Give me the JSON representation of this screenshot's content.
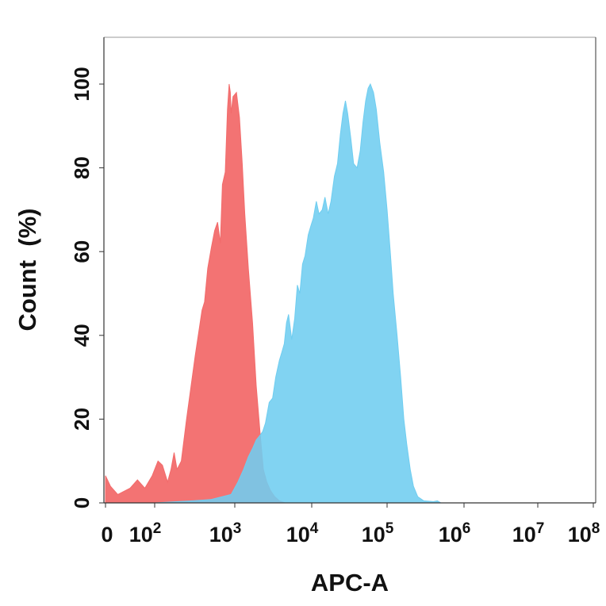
{
  "chart_data": {
    "type": "area",
    "title": "",
    "xlabel": "APC-A",
    "ylabel": "Count  (%)",
    "x_scale": "biexponential (log10 for x > 0)",
    "xlim": [
      0,
      100000000
    ],
    "ylim": [
      0,
      110
    ],
    "y_ticks": [
      "0",
      "20",
      "40",
      "60",
      "80",
      "100"
    ],
    "x_ticks": [
      {
        "value": 0,
        "base": "0",
        "exp": ""
      },
      {
        "value": 100,
        "base": "10",
        "exp": "2"
      },
      {
        "value": 1000,
        "base": "10",
        "exp": "3"
      },
      {
        "value": 10000,
        "base": "10",
        "exp": "4"
      },
      {
        "value": 100000,
        "base": "10",
        "exp": "5"
      },
      {
        "value": 1000000,
        "base": "10",
        "exp": "6"
      },
      {
        "value": 10000000,
        "base": "10",
        "exp": "7"
      },
      {
        "value": 100000000,
        "base": "10",
        "exp": "8"
      }
    ],
    "grid": false,
    "legend": "none",
    "series": [
      {
        "color": "#f26b6b",
        "points": [
          [
            0,
            6.5
          ],
          [
            10,
            4
          ],
          [
            25,
            2
          ],
          [
            50,
            3.5
          ],
          [
            65,
            5.5
          ],
          [
            80,
            3.5
          ],
          [
            95,
            6.5
          ],
          [
            110,
            10
          ],
          [
            125,
            9
          ],
          [
            145,
            5
          ],
          [
            160,
            8
          ],
          [
            175,
            12
          ],
          [
            190,
            8
          ],
          [
            215,
            10
          ],
          [
            250,
            20
          ],
          [
            320,
            35
          ],
          [
            390,
            46
          ],
          [
            420,
            48
          ],
          [
            460,
            56
          ],
          [
            510,
            61
          ],
          [
            560,
            65
          ],
          [
            610,
            67
          ],
          [
            660,
            62
          ],
          [
            700,
            76
          ],
          [
            760,
            79
          ],
          [
            810,
            94
          ],
          [
            850,
            100
          ],
          [
            880,
            98
          ],
          [
            900,
            93
          ],
          [
            950,
            97
          ],
          [
            1050,
            98
          ],
          [
            1150,
            92
          ],
          [
            1250,
            81
          ],
          [
            1350,
            69
          ],
          [
            1500,
            56
          ],
          [
            1700,
            43
          ],
          [
            1900,
            28
          ],
          [
            2150,
            16
          ],
          [
            2350,
            8
          ],
          [
            2600,
            5
          ],
          [
            2900,
            3
          ],
          [
            3300,
            1.5
          ],
          [
            3800,
            0.5
          ],
          [
            4500,
            0
          ]
        ]
      },
      {
        "color": "#6fcdf0",
        "points": [
          [
            100,
            0
          ],
          [
            300,
            0.5
          ],
          [
            500,
            0.8
          ],
          [
            900,
            2
          ],
          [
            1100,
            5
          ],
          [
            1300,
            8
          ],
          [
            1500,
            11
          ],
          [
            1700,
            13
          ],
          [
            1900,
            15
          ],
          [
            2100,
            16
          ],
          [
            2300,
            17
          ],
          [
            2500,
            19
          ],
          [
            2800,
            24
          ],
          [
            3100,
            25
          ],
          [
            3400,
            30
          ],
          [
            3800,
            34
          ],
          [
            4100,
            36
          ],
          [
            4400,
            38
          ],
          [
            4700,
            43
          ],
          [
            5000,
            45
          ],
          [
            5500,
            39
          ],
          [
            6000,
            44
          ],
          [
            6500,
            52
          ],
          [
            7000,
            50
          ],
          [
            7600,
            57
          ],
          [
            8200,
            59
          ],
          [
            9000,
            64
          ],
          [
            9700,
            66
          ],
          [
            10500,
            68
          ],
          [
            11500,
            72
          ],
          [
            12500,
            69
          ],
          [
            13800,
            70
          ],
          [
            15000,
            73
          ],
          [
            16500,
            69
          ],
          [
            18000,
            72
          ],
          [
            20000,
            78
          ],
          [
            22000,
            81
          ],
          [
            24000,
            88
          ],
          [
            26000,
            93
          ],
          [
            28000,
            96
          ],
          [
            30000,
            93
          ],
          [
            33000,
            87
          ],
          [
            36000,
            81
          ],
          [
            40000,
            80
          ],
          [
            44000,
            84
          ],
          [
            48000,
            91
          ],
          [
            52000,
            96
          ],
          [
            56000,
            99
          ],
          [
            60000,
            100
          ],
          [
            66000,
            98
          ],
          [
            72000,
            94
          ],
          [
            80000,
            86
          ],
          [
            90000,
            79
          ],
          [
            100000,
            70
          ],
          [
            110000,
            60
          ],
          [
            120000,
            50
          ],
          [
            135000,
            40
          ],
          [
            150000,
            30
          ],
          [
            165000,
            20
          ],
          [
            180000,
            14
          ],
          [
            200000,
            8
          ],
          [
            220000,
            4
          ],
          [
            250000,
            1.5
          ],
          [
            300000,
            0.5
          ],
          [
            400000,
            0.3
          ],
          [
            450000,
            0.5
          ],
          [
            500000,
            0
          ]
        ]
      }
    ]
  }
}
